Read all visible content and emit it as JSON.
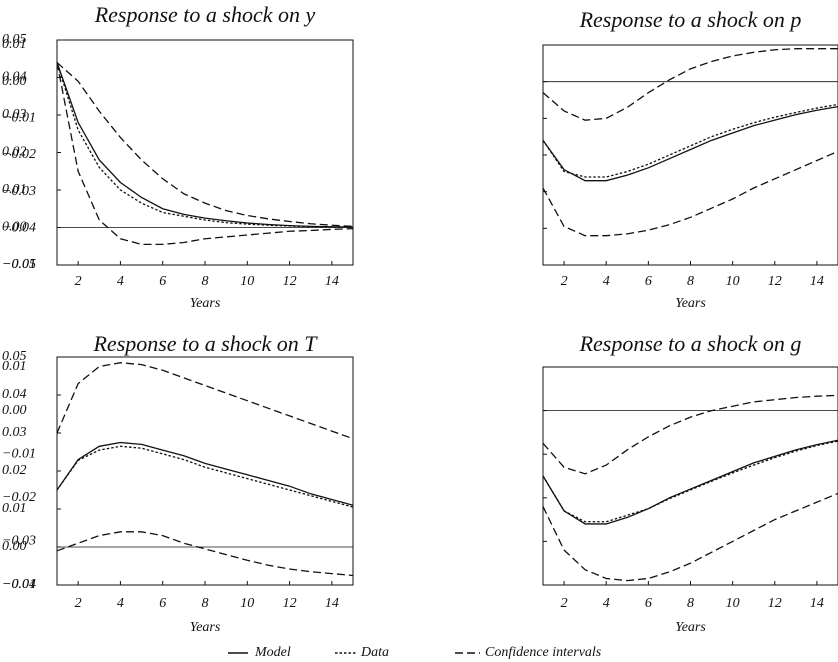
{
  "chart_data": [
    {
      "type": "line",
      "title": "Response to a shock on y",
      "xlabel": "Years",
      "x": [
        1,
        2,
        3,
        4,
        5,
        6,
        7,
        8,
        9,
        10,
        11,
        12,
        13,
        14,
        15
      ],
      "model": [
        0.044,
        0.028,
        0.018,
        0.012,
        0.008,
        0.005,
        0.0035,
        0.0025,
        0.0018,
        0.0012,
        0.0008,
        0.0005,
        0.0003,
        0.0002,
        0.0001
      ],
      "data": [
        0.044,
        0.026,
        0.016,
        0.01,
        0.0065,
        0.004,
        0.003,
        0.002,
        0.0013,
        0.0009,
        0.0006,
        0.0004,
        0.0002,
        0.0001,
        0.0
      ],
      "ci_upper": [
        0.044,
        0.039,
        0.031,
        0.024,
        0.018,
        0.013,
        0.009,
        0.0065,
        0.0045,
        0.0032,
        0.0023,
        0.0016,
        0.001,
        0.0006,
        0.0003
      ],
      "ci_lower": [
        0.044,
        0.015,
        0.002,
        -0.003,
        -0.0045,
        -0.0045,
        -0.004,
        -0.003,
        -0.0025,
        -0.002,
        -0.0015,
        -0.001,
        -0.0008,
        -0.0005,
        -0.0003
      ],
      "hline": 0,
      "xlim": [
        1,
        15
      ],
      "xticks": [
        2,
        4,
        6,
        8,
        10,
        12,
        14
      ],
      "ylim": [
        -0.01,
        0.05
      ],
      "yticks": [
        {
          "value": -0.01,
          "label": "−0.01"
        },
        {
          "value": 0,
          "label": "0.00"
        },
        0.01,
        0.02,
        0.03,
        0.04,
        0.05
      ]
    },
    {
      "type": "line",
      "title": "Response to a shock on p",
      "xlabel": "Years",
      "x": [
        1,
        2,
        3,
        4,
        5,
        6,
        7,
        8,
        9,
        10,
        11,
        12,
        13,
        14,
        15
      ],
      "model": [
        -0.016,
        -0.024,
        -0.027,
        -0.027,
        -0.0255,
        -0.0235,
        -0.021,
        -0.0185,
        -0.016,
        -0.014,
        -0.012,
        -0.0105,
        -0.009,
        -0.0078,
        -0.0068
      ],
      "data": [
        -0.016,
        -0.0245,
        -0.026,
        -0.026,
        -0.0245,
        -0.0225,
        -0.02,
        -0.0175,
        -0.015,
        -0.013,
        -0.0112,
        -0.0097,
        -0.0084,
        -0.0072,
        -0.0062
      ],
      "ci_upper": [
        -0.003,
        -0.008,
        -0.0105,
        -0.01,
        -0.007,
        -0.003,
        0.0005,
        0.0035,
        0.0055,
        0.007,
        0.008,
        0.0087,
        0.009,
        0.009,
        0.009
      ],
      "ci_lower": [
        -0.029,
        -0.0395,
        -0.042,
        -0.042,
        -0.0415,
        -0.0405,
        -0.039,
        -0.037,
        -0.0345,
        -0.032,
        -0.029,
        -0.0265,
        -0.024,
        -0.0215,
        -0.019
      ],
      "hline": 0,
      "xlim": [
        1,
        15
      ],
      "xticks": [
        2,
        4,
        6,
        8,
        10,
        12,
        14
      ],
      "ylim": [
        -0.05,
        0.01
      ],
      "yticks": [
        {
          "value": -0.05,
          "label": "−0.05"
        },
        {
          "value": -0.04,
          "label": "−0.04"
        },
        {
          "value": -0.03,
          "label": "−0.03"
        },
        {
          "value": -0.02,
          "label": "−0.02"
        },
        {
          "value": -0.01,
          "label": "−0.01"
        },
        {
          "value": 0,
          "label": "0.00"
        },
        0.01
      ]
    },
    {
      "type": "line",
      "title": "Response to a shock on T",
      "xlabel": "Years",
      "x": [
        1,
        2,
        3,
        4,
        5,
        6,
        7,
        8,
        9,
        10,
        11,
        12,
        13,
        14,
        15
      ],
      "model": [
        0.015,
        0.023,
        0.0265,
        0.0275,
        0.027,
        0.0255,
        0.024,
        0.022,
        0.0205,
        0.019,
        0.0175,
        0.016,
        0.014,
        0.0125,
        0.011
      ],
      "data": [
        0.015,
        0.0228,
        0.0255,
        0.0265,
        0.026,
        0.0245,
        0.023,
        0.021,
        0.0195,
        0.018,
        0.0165,
        0.015,
        0.0135,
        0.012,
        0.0105
      ],
      "ci_upper": [
        0.03,
        0.043,
        0.0475,
        0.0485,
        0.048,
        0.0465,
        0.0445,
        0.0425,
        0.0405,
        0.0385,
        0.0365,
        0.0345,
        0.0325,
        0.0305,
        0.0285
      ],
      "ci_lower": [
        -0.001,
        0.001,
        0.003,
        0.004,
        0.004,
        0.003,
        0.001,
        -0.0005,
        -0.002,
        -0.0035,
        -0.0048,
        -0.0058,
        -0.0065,
        -0.007,
        -0.0075
      ],
      "hline": 0,
      "xlim": [
        1,
        15
      ],
      "xticks": [
        2,
        4,
        6,
        8,
        10,
        12,
        14
      ],
      "ylim": [
        -0.01,
        0.05
      ],
      "yticks": [
        {
          "value": -0.01,
          "label": "−0.01"
        },
        {
          "value": 0,
          "label": "0.00"
        },
        0.01,
        0.02,
        0.03,
        0.04,
        0.05
      ]
    },
    {
      "type": "line",
      "title": "Response to a shock on g",
      "xlabel": "Years",
      "x": [
        1,
        2,
        3,
        4,
        5,
        6,
        7,
        8,
        9,
        10,
        11,
        12,
        13,
        14,
        15
      ],
      "model": [
        -0.015,
        -0.023,
        -0.026,
        -0.026,
        -0.0245,
        -0.0225,
        -0.02,
        -0.018,
        -0.016,
        -0.014,
        -0.012,
        -0.0105,
        -0.009,
        -0.0078,
        -0.0068
      ],
      "data": [
        -0.015,
        -0.023,
        -0.0255,
        -0.0255,
        -0.024,
        -0.0225,
        -0.0202,
        -0.0182,
        -0.0162,
        -0.0143,
        -0.0125,
        -0.0108,
        -0.0093,
        -0.008,
        -0.007
      ],
      "ci_upper": [
        -0.0075,
        -0.013,
        -0.0145,
        -0.0125,
        -0.009,
        -0.006,
        -0.0035,
        -0.0015,
        0,
        0.001,
        0.002,
        0.0025,
        0.003,
        0.0033,
        0.0035
      ],
      "ci_lower": [
        -0.022,
        -0.032,
        -0.0365,
        -0.0385,
        -0.039,
        -0.0385,
        -0.037,
        -0.035,
        -0.0325,
        -0.03,
        -0.0275,
        -0.025,
        -0.023,
        -0.021,
        -0.019
      ],
      "hline": 0,
      "xlim": [
        1,
        15
      ],
      "xticks": [
        2,
        4,
        6,
        8,
        10,
        12,
        14
      ],
      "ylim": [
        -0.04,
        0.01
      ],
      "yticks": [
        {
          "value": -0.04,
          "label": "−0.04"
        },
        {
          "value": -0.03,
          "label": "−0.03"
        },
        {
          "value": -0.02,
          "label": "−0.02"
        },
        {
          "value": -0.01,
          "label": "−0.01"
        },
        {
          "value": 0,
          "label": "0.00"
        },
        0.01
      ]
    }
  ],
  "legend": {
    "model": "Model",
    "data": "Data",
    "ci": "Confidence intervals"
  }
}
